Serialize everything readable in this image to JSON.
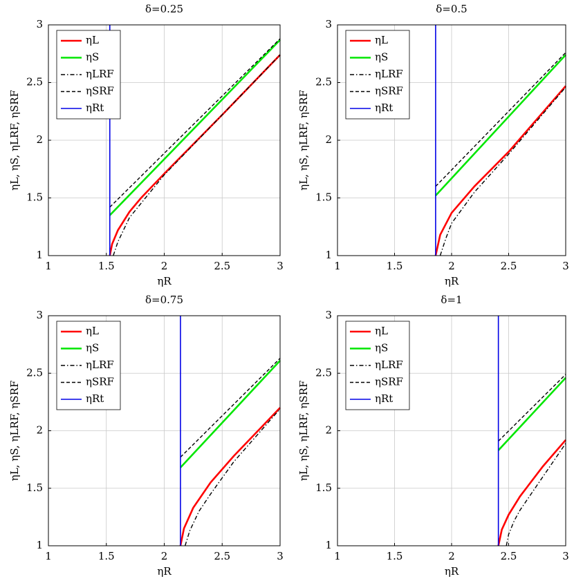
{
  "chart_data": [
    {
      "type": "line",
      "title": "δ=0.25",
      "x_label": "ηR",
      "y_label": "ηL, ηS, ηLRF, ηSRF",
      "xlim": [
        1,
        3
      ],
      "ylim": [
        1,
        3
      ],
      "xticks": [
        1,
        1.5,
        2,
        2.5,
        3
      ],
      "yticks": [
        1,
        1.5,
        2,
        2.5,
        3
      ],
      "grid": true,
      "legend": "upper-left",
      "series": [
        {
          "name": "ηL",
          "color": "#ff0000",
          "dash": "solid",
          "x": [
            1.53,
            1.55,
            1.6,
            1.7,
            1.8,
            2,
            2.5,
            3
          ],
          "values": [
            1.0,
            1.1,
            1.22,
            1.38,
            1.5,
            1.71,
            2.22,
            2.74
          ]
        },
        {
          "name": "ηS",
          "color": "#00e600",
          "dash": "solid",
          "x": [
            1.53,
            3
          ],
          "values": [
            1.35,
            2.87
          ]
        },
        {
          "name": "ηLRF",
          "color": "#000000",
          "dash": "dashdot",
          "x": [
            1.56,
            1.6,
            1.7,
            2,
            2.5,
            3
          ],
          "values": [
            1.0,
            1.12,
            1.33,
            1.7,
            2.22,
            2.74
          ]
        },
        {
          "name": "ηSRF",
          "color": "#000000",
          "dash": "dashed",
          "x": [
            1.53,
            3
          ],
          "values": [
            1.42,
            2.88
          ]
        },
        {
          "name": "ηRt",
          "color": "#0000e6",
          "dash": "solid",
          "x": [
            1.53,
            1.53
          ],
          "values": [
            1,
            3
          ]
        }
      ]
    },
    {
      "type": "line",
      "title": "δ=0.5",
      "x_label": "ηR",
      "y_label": "ηL, ηS, ηLRF, ηSRF",
      "xlim": [
        1,
        3
      ],
      "ylim": [
        1,
        3
      ],
      "xticks": [
        1,
        1.5,
        2,
        2.5,
        3
      ],
      "yticks": [
        1,
        1.5,
        2,
        2.5,
        3
      ],
      "grid": true,
      "legend": "upper-left",
      "series": [
        {
          "name": "ηL",
          "color": "#ff0000",
          "dash": "solid",
          "x": [
            1.86,
            1.9,
            2,
            2.2,
            2.5,
            3
          ],
          "values": [
            1.0,
            1.18,
            1.37,
            1.6,
            1.9,
            2.47
          ]
        },
        {
          "name": "ηS",
          "color": "#00e600",
          "dash": "solid",
          "x": [
            1.86,
            3
          ],
          "values": [
            1.52,
            2.74
          ]
        },
        {
          "name": "ηLRF",
          "color": "#000000",
          "dash": "dashdot",
          "x": [
            1.9,
            1.95,
            2,
            2.2,
            2.5,
            3
          ],
          "values": [
            1.0,
            1.15,
            1.28,
            1.55,
            1.88,
            2.46
          ]
        },
        {
          "name": "ηSRF",
          "color": "#000000",
          "dash": "dashed",
          "x": [
            1.86,
            3
          ],
          "values": [
            1.6,
            2.76
          ]
        },
        {
          "name": "ηRt",
          "color": "#0000e6",
          "dash": "solid",
          "x": [
            1.86,
            1.86
          ],
          "values": [
            1,
            3
          ]
        }
      ]
    },
    {
      "type": "line",
      "title": "δ=0.75",
      "x_label": "ηR",
      "y_label": "ηL, ηS, ηLRF, ηSRF",
      "xlim": [
        1,
        3
      ],
      "ylim": [
        1,
        3
      ],
      "xticks": [
        1,
        1.5,
        2,
        2.5,
        3
      ],
      "yticks": [
        1,
        1.5,
        2,
        2.5,
        3
      ],
      "grid": true,
      "legend": "upper-left",
      "series": [
        {
          "name": "ηL",
          "color": "#ff0000",
          "dash": "solid",
          "x": [
            2.14,
            2.17,
            2.25,
            2.4,
            2.6,
            3
          ],
          "values": [
            1.0,
            1.15,
            1.33,
            1.55,
            1.78,
            2.2
          ]
        },
        {
          "name": "ηS",
          "color": "#00e600",
          "dash": "solid",
          "x": [
            2.14,
            3
          ],
          "values": [
            1.68,
            2.61
          ]
        },
        {
          "name": "ηLRF",
          "color": "#000000",
          "dash": "dashdot",
          "x": [
            2.18,
            2.22,
            2.3,
            2.4,
            2.6,
            3
          ],
          "values": [
            1.0,
            1.13,
            1.3,
            1.45,
            1.73,
            2.19
          ]
        },
        {
          "name": "ηSRF",
          "color": "#000000",
          "dash": "dashed",
          "x": [
            2.14,
            3
          ],
          "values": [
            1.77,
            2.63
          ]
        },
        {
          "name": "ηRt",
          "color": "#0000e6",
          "dash": "solid",
          "x": [
            2.14,
            2.14
          ],
          "values": [
            1,
            3
          ]
        }
      ]
    },
    {
      "type": "line",
      "title": "δ=1",
      "x_label": "ηR",
      "y_label": "ηL, ηS, ηLRF, ηSRF",
      "xlim": [
        1,
        3
      ],
      "ylim": [
        1,
        3
      ],
      "xticks": [
        1,
        1.5,
        2,
        2.5,
        3
      ],
      "yticks": [
        1,
        1.5,
        2,
        2.5,
        3
      ],
      "grid": true,
      "legend": "upper-left",
      "series": [
        {
          "name": "ηL",
          "color": "#ff0000",
          "dash": "solid",
          "x": [
            2.41,
            2.44,
            2.5,
            2.6,
            2.8,
            3
          ],
          "values": [
            1.0,
            1.14,
            1.27,
            1.43,
            1.69,
            1.92
          ]
        },
        {
          "name": "ηS",
          "color": "#00e600",
          "dash": "solid",
          "x": [
            2.41,
            3
          ],
          "values": [
            1.83,
            2.46
          ]
        },
        {
          "name": "ηLRF",
          "color": "#000000",
          "dash": "dashdot",
          "x": [
            2.48,
            2.5,
            2.55,
            2.6,
            2.8,
            3
          ],
          "values": [
            1.0,
            1.1,
            1.22,
            1.31,
            1.6,
            1.89
          ]
        },
        {
          "name": "ηSRF",
          "color": "#000000",
          "dash": "dashed",
          "x": [
            2.41,
            3
          ],
          "values": [
            1.91,
            2.49
          ]
        },
        {
          "name": "ηRt",
          "color": "#0000e6",
          "dash": "solid",
          "x": [
            2.41,
            2.41
          ],
          "values": [
            1,
            3
          ]
        }
      ]
    }
  ]
}
